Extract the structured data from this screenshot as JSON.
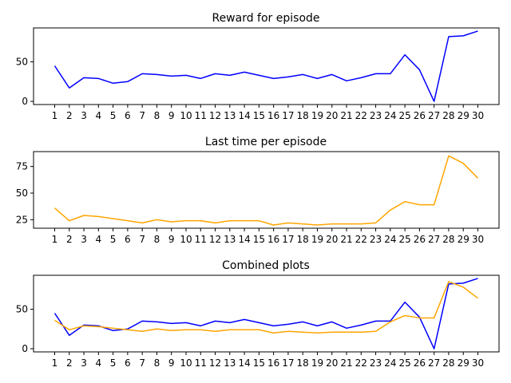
{
  "colors": {
    "reward": "#0000ff",
    "time": "#ffa500",
    "axes": "#000000",
    "background": "#ffffff"
  },
  "chart_data": [
    {
      "type": "line",
      "title": "Reward for episode",
      "xlabel": "",
      "ylabel": "",
      "x": [
        1,
        2,
        3,
        4,
        5,
        6,
        7,
        8,
        9,
        10,
        11,
        12,
        13,
        14,
        15,
        16,
        17,
        18,
        19,
        20,
        21,
        22,
        23,
        24,
        25,
        26,
        27,
        28,
        29,
        30
      ],
      "xticks": [
        "1",
        "2",
        "3",
        "4",
        "5",
        "6",
        "7",
        "8",
        "9",
        "10",
        "11",
        "12",
        "13",
        "14",
        "15",
        "16",
        "17",
        "18",
        "19",
        "20",
        "21",
        "22",
        "23",
        "24",
        "25",
        "26",
        "27",
        "28",
        "29",
        "30"
      ],
      "ylim": [
        -4,
        93
      ],
      "yticks": [
        0,
        50
      ],
      "series": [
        {
          "color": "#0000ff",
          "values": [
            45,
            17,
            30,
            29,
            23,
            25,
            35,
            34,
            32,
            33,
            29,
            35,
            33,
            37,
            33,
            29,
            31,
            34,
            29,
            34,
            26,
            30,
            35,
            35,
            59,
            40,
            0,
            82,
            83,
            89
          ]
        }
      ]
    },
    {
      "type": "line",
      "title": "Last time per episode",
      "xlabel": "",
      "ylabel": "",
      "x": [
        1,
        2,
        3,
        4,
        5,
        6,
        7,
        8,
        9,
        10,
        11,
        12,
        13,
        14,
        15,
        16,
        17,
        18,
        19,
        20,
        21,
        22,
        23,
        24,
        25,
        26,
        27,
        28,
        29,
        30
      ],
      "xticks": [
        "1",
        "2",
        "3",
        "4",
        "5",
        "6",
        "7",
        "8",
        "9",
        "10",
        "11",
        "12",
        "13",
        "14",
        "15",
        "16",
        "17",
        "18",
        "19",
        "20",
        "21",
        "22",
        "23",
        "24",
        "25",
        "26",
        "27",
        "28",
        "29",
        "30"
      ],
      "ylim": [
        17,
        89
      ],
      "yticks": [
        25,
        50,
        75
      ],
      "series": [
        {
          "color": "#ffa500",
          "values": [
            36,
            24,
            29,
            28,
            26,
            24,
            22,
            25,
            23,
            24,
            24,
            22,
            24,
            24,
            24,
            20,
            22,
            21,
            20,
            21,
            21,
            21,
            22,
            34,
            42,
            39,
            39,
            85,
            78,
            64
          ]
        }
      ]
    },
    {
      "type": "line",
      "title": "Combined plots",
      "xlabel": "",
      "ylabel": "",
      "x": [
        1,
        2,
        3,
        4,
        5,
        6,
        7,
        8,
        9,
        10,
        11,
        12,
        13,
        14,
        15,
        16,
        17,
        18,
        19,
        20,
        21,
        22,
        23,
        24,
        25,
        26,
        27,
        28,
        29,
        30
      ],
      "xticks": [
        "1",
        "2",
        "3",
        "4",
        "5",
        "6",
        "7",
        "8",
        "9",
        "10",
        "11",
        "12",
        "13",
        "14",
        "15",
        "16",
        "17",
        "18",
        "19",
        "20",
        "21",
        "22",
        "23",
        "24",
        "25",
        "26",
        "27",
        "28",
        "29",
        "30"
      ],
      "ylim": [
        -4,
        93
      ],
      "yticks": [
        0,
        50
      ],
      "series": [
        {
          "color": "#0000ff",
          "values": [
            45,
            17,
            30,
            29,
            23,
            25,
            35,
            34,
            32,
            33,
            29,
            35,
            33,
            37,
            33,
            29,
            31,
            34,
            29,
            34,
            26,
            30,
            35,
            35,
            59,
            40,
            0,
            82,
            83,
            89
          ]
        },
        {
          "color": "#ffa500",
          "values": [
            36,
            24,
            29,
            28,
            26,
            24,
            22,
            25,
            23,
            24,
            24,
            22,
            24,
            24,
            24,
            20,
            22,
            21,
            20,
            21,
            21,
            21,
            22,
            34,
            42,
            39,
            39,
            85,
            78,
            64
          ]
        }
      ]
    }
  ]
}
